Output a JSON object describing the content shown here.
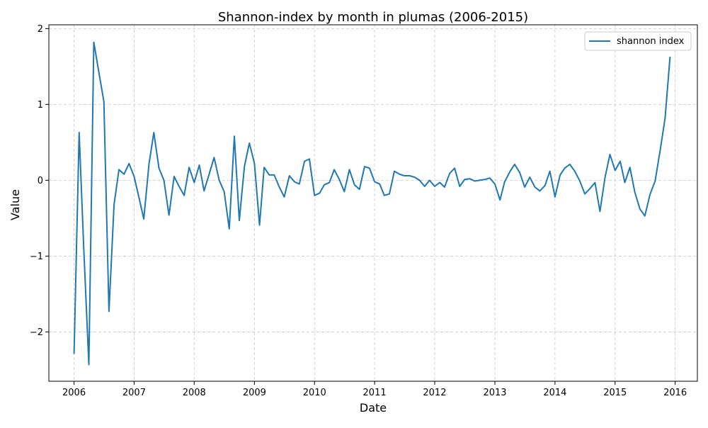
{
  "chart_data": {
    "type": "line",
    "title": "Shannon-index by month in plumas (2006-2015)",
    "xlabel": "Date",
    "ylabel": "Value",
    "x_ticks": [
      "2006",
      "2007",
      "2008",
      "2009",
      "2010",
      "2011",
      "2012",
      "2013",
      "2014",
      "2015",
      "2016"
    ],
    "y_ticks": [
      -2,
      -1,
      0,
      1,
      2
    ],
    "xlim": [
      "2005-08-01",
      "2016-05-15"
    ],
    "ylim": [
      -2.65,
      2.05
    ],
    "grid": true,
    "legend_position": "top-right",
    "color": "#1f77b4",
    "series": [
      {
        "name": "shannon index",
        "x": [
          "2006-01",
          "2006-02",
          "2006-03",
          "2006-04",
          "2006-05",
          "2006-06",
          "2006-07",
          "2006-08",
          "2006-09",
          "2006-10",
          "2006-11",
          "2006-12",
          "2007-01",
          "2007-02",
          "2007-03",
          "2007-04",
          "2007-05",
          "2007-06",
          "2007-07",
          "2007-08",
          "2007-09",
          "2007-10",
          "2007-11",
          "2007-12",
          "2008-01",
          "2008-02",
          "2008-03",
          "2008-04",
          "2008-05",
          "2008-06",
          "2008-07",
          "2008-08",
          "2008-09",
          "2008-10",
          "2008-11",
          "2008-12",
          "2009-01",
          "2009-02",
          "2009-03",
          "2009-04",
          "2009-05",
          "2009-06",
          "2009-07",
          "2009-08",
          "2009-09",
          "2009-10",
          "2009-11",
          "2009-12",
          "2010-01",
          "2010-02",
          "2010-03",
          "2010-04",
          "2010-05",
          "2010-06",
          "2010-07",
          "2010-08",
          "2010-09",
          "2010-10",
          "2010-11",
          "2010-12",
          "2011-01",
          "2011-02",
          "2011-03",
          "2011-04",
          "2011-05",
          "2011-06",
          "2011-07",
          "2011-08",
          "2011-09",
          "2011-10",
          "2011-11",
          "2011-12",
          "2012-01",
          "2012-02",
          "2012-03",
          "2012-04",
          "2012-05",
          "2012-06",
          "2012-07",
          "2012-08",
          "2012-09",
          "2012-10",
          "2012-11",
          "2012-12",
          "2013-01",
          "2013-02",
          "2013-03",
          "2013-04",
          "2013-05",
          "2013-06",
          "2013-07",
          "2013-08",
          "2013-09",
          "2013-10",
          "2013-11",
          "2013-12",
          "2014-01",
          "2014-02",
          "2014-03",
          "2014-04",
          "2014-05",
          "2014-06",
          "2014-07",
          "2014-08",
          "2014-09",
          "2014-10",
          "2014-11",
          "2014-12",
          "2015-01",
          "2015-02",
          "2015-03",
          "2015-04",
          "2015-05",
          "2015-06",
          "2015-07",
          "2015-08",
          "2015-09",
          "2015-10",
          "2015-11",
          "2015-12"
        ],
        "y": [
          -2.29,
          0.63,
          -0.9,
          -2.43,
          1.82,
          1.42,
          1.04,
          -1.73,
          -0.32,
          0.14,
          0.08,
          0.22,
          0.05,
          -0.24,
          -0.51,
          0.21,
          0.63,
          0.16,
          0.0,
          -0.46,
          0.05,
          -0.08,
          -0.2,
          0.17,
          -0.03,
          0.2,
          -0.14,
          0.08,
          0.3,
          0.0,
          -0.15,
          -0.64,
          0.58,
          -0.53,
          0.18,
          0.49,
          0.22,
          -0.59,
          0.17,
          0.07,
          0.07,
          -0.09,
          -0.22,
          0.06,
          -0.02,
          -0.05,
          0.25,
          0.28,
          -0.2,
          -0.17,
          -0.06,
          -0.03,
          0.14,
          0.01,
          -0.15,
          0.14,
          -0.06,
          -0.12,
          0.18,
          0.16,
          -0.02,
          -0.05,
          -0.2,
          -0.18,
          0.12,
          0.08,
          0.06,
          0.06,
          0.04,
          0.0,
          -0.08,
          0.0,
          -0.08,
          -0.03,
          -0.09,
          0.09,
          0.16,
          -0.08,
          0.01,
          0.02,
          -0.01,
          0.0,
          0.01,
          0.03,
          -0.05,
          -0.26,
          -0.02,
          0.11,
          0.21,
          0.1,
          -0.09,
          0.04,
          -0.09,
          -0.14,
          -0.07,
          0.12,
          -0.22,
          0.07,
          0.16,
          0.21,
          0.12,
          -0.01,
          -0.18,
          -0.11,
          -0.03,
          -0.41,
          0.04,
          0.34,
          0.13,
          0.25,
          -0.03,
          0.17,
          -0.16,
          -0.38,
          -0.47,
          -0.19,
          -0.01,
          0.38,
          0.82,
          1.63
        ]
      }
    ]
  }
}
